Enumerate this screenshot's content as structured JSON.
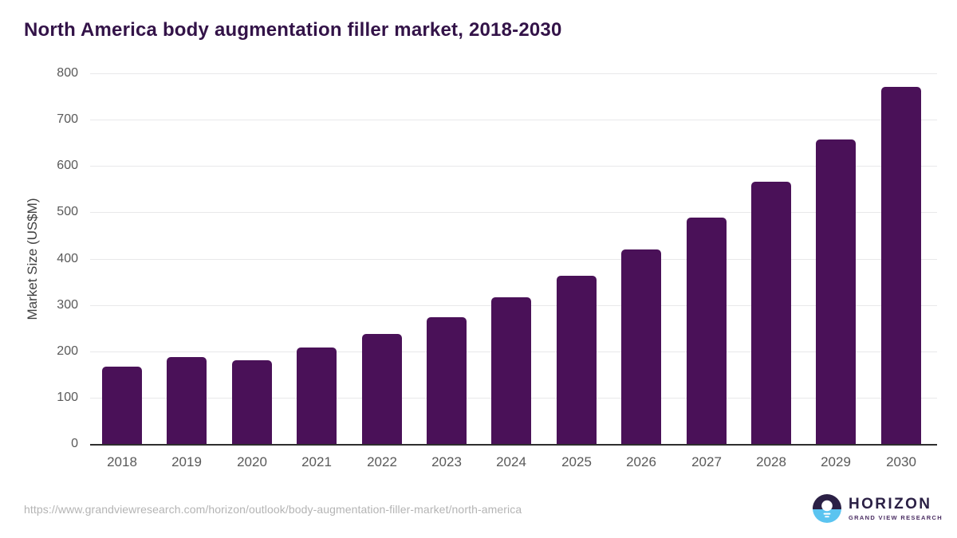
{
  "title": "North America body augmentation filler market, 2018-2030",
  "source_url": "https://www.grandviewresearch.com/horizon/outlook/body-augmentation-filler-market/north-america",
  "logo": {
    "brand": "HORIZON",
    "subtext": "GRAND VIEW RESEARCH",
    "icon": "sunset-over-water-icon",
    "dark_color": "#2b2045",
    "blue_color": "#5bc4f0",
    "subtext_color": "#4b2e63"
  },
  "colors": {
    "background": "#ffffff",
    "bar": "#4a1158",
    "title": "#331348",
    "tick_label": "#595959",
    "axis_title": "#3f3f3f",
    "gridline": "#e8e8ea",
    "axis_line": "#2e2e2e",
    "url_text": "#b4b4b4"
  },
  "chart_data": {
    "type": "bar",
    "title": "North America body augmentation filler market, 2018-2030",
    "categories": [
      "2018",
      "2019",
      "2020",
      "2021",
      "2022",
      "2023",
      "2024",
      "2025",
      "2026",
      "2027",
      "2028",
      "2029",
      "2030"
    ],
    "values": [
      167,
      188,
      180,
      208,
      237,
      273,
      317,
      363,
      420,
      488,
      566,
      658,
      770
    ],
    "xlabel": "",
    "ylabel": "Market Size (US$M)",
    "ylim": [
      0,
      800
    ],
    "ytick_step": 100,
    "grid": true,
    "legend_position": "none"
  }
}
